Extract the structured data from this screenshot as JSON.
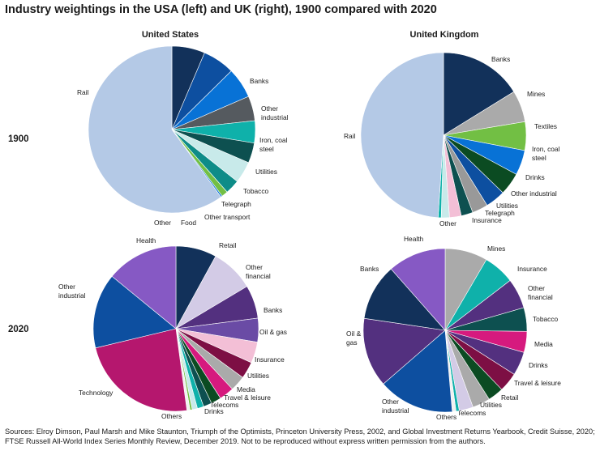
{
  "title": "Industry weightings in the USA (left) and UK (right), 1900 compared with 2020",
  "columns": [
    "United States",
    "United Kingdom"
  ],
  "rows": [
    "1900",
    "2020"
  ],
  "source": "Sources: Elroy Dimson, Paul Marsh and Mike Staunton, Triumph of the Optimists, Princeton University Press, 2002, and Global Investment Returns Yearbook, Credit Suisse, 2020; FTSE Russell All-World Index Series Monthly Review, December 2019. Not to be reproduced without express written permission from the authors.",
  "chart_data": [
    {
      "type": "pie",
      "title": "United States 1900",
      "start_angle_deg": 90,
      "direction": "clockwise",
      "slices": [
        {
          "label": "Banks",
          "value": 6.4,
          "color": "#12315a"
        },
        {
          "label": "Other industrial",
          "value": 6.2,
          "color": "#0d4fa0"
        },
        {
          "label": "Iron, coal steel",
          "value": 5.9,
          "color": "#0872d6"
        },
        {
          "label": "Utilities",
          "value": 4.8,
          "color": "#555a5f"
        },
        {
          "label": "Tobacco",
          "value": 4.3,
          "color": "#0fb1aa"
        },
        {
          "label": "Telegraph",
          "value": 3.9,
          "color": "#0d5050"
        },
        {
          "label": "Other transport",
          "value": 4.2,
          "color": "#c8eaea"
        },
        {
          "label": "Food",
          "value": 2.8,
          "color": "#0e8c88"
        },
        {
          "label": "Other",
          "value": 1.2,
          "color": "#72bf44"
        },
        {
          "label": "",
          "value": 0.3,
          "color": "#0872d6"
        },
        {
          "label": "Rail",
          "value": 60.0,
          "color": "#b4c9e6"
        }
      ]
    },
    {
      "type": "pie",
      "title": "United Kingdom 1900",
      "start_angle_deg": 90,
      "direction": "clockwise",
      "slices": [
        {
          "label": "Banks",
          "value": 16.2,
          "color": "#12315a"
        },
        {
          "label": "Mines",
          "value": 6.2,
          "color": "#aaaaaa"
        },
        {
          "label": "Textiles",
          "value": 5.6,
          "color": "#72bf44"
        },
        {
          "label": "Iron, coal steel",
          "value": 4.9,
          "color": "#0872d6"
        },
        {
          "label": "Drinks",
          "value": 4.4,
          "color": "#0b4b22"
        },
        {
          "label": "Other industrial",
          "value": 3.9,
          "color": "#0d4fa0"
        },
        {
          "label": "Utilities",
          "value": 3.1,
          "color": "#999999"
        },
        {
          "label": "Telegraph",
          "value": 2.3,
          "color": "#0d5050"
        },
        {
          "label": "Insurance",
          "value": 2.3,
          "color": "#f3bfd6"
        },
        {
          "label": "Other",
          "value": 1.6,
          "color": "#c8eaea"
        },
        {
          "label": "",
          "value": 0.6,
          "color": "#0fb1aa"
        },
        {
          "label": "Rail",
          "value": 49.0,
          "color": "#b4c9e6"
        }
      ]
    },
    {
      "type": "pie",
      "title": "United States 2020",
      "start_angle_deg": 90,
      "direction": "clockwise",
      "slices": [
        {
          "label": "Retail",
          "value": 7.7,
          "color": "#12315a"
        },
        {
          "label": "Other financial",
          "value": 8.2,
          "color": "#d3cbe6"
        },
        {
          "label": "Banks",
          "value": 6.3,
          "color": "#53307f"
        },
        {
          "label": "Oil & gas",
          "value": 4.5,
          "color": "#6a4ba5"
        },
        {
          "label": "Insurance",
          "value": 4.0,
          "color": "#f3bfd6"
        },
        {
          "label": "Utilities",
          "value": 3.2,
          "color": "#7d0f44"
        },
        {
          "label": "Media",
          "value": 2.9,
          "color": "#aaaaaa"
        },
        {
          "label": "Travel & leisure",
          "value": 2.8,
          "color": "#d61a7e"
        },
        {
          "label": "Telecoms",
          "value": 1.9,
          "color": "#0b4b22"
        },
        {
          "label": "Drinks",
          "value": 1.6,
          "color": "#0d5050"
        },
        {
          "label": "",
          "value": 1.2,
          "color": "#0fb1aa"
        },
        {
          "label": "",
          "value": 1.0,
          "color": "#c8eaea"
        },
        {
          "label": "",
          "value": 0.4,
          "color": "#72bf44"
        },
        {
          "label": "Others",
          "value": 0.6,
          "color": "#f1f1f1"
        },
        {
          "label": "Technology",
          "value": 22.6,
          "color": "#b5176e"
        },
        {
          "label": "Other industrial",
          "value": 14.2,
          "color": "#0d4fa0"
        },
        {
          "label": "Health",
          "value": 13.6,
          "color": "#8659c4"
        }
      ]
    },
    {
      "type": "pie",
      "title": "United Kingdom 2020",
      "start_angle_deg": 90,
      "direction": "clockwise",
      "slices": [
        {
          "label": "Mines",
          "value": 7.9,
          "color": "#aaaaaa"
        },
        {
          "label": "Insurance",
          "value": 5.8,
          "color": "#0fb1aa"
        },
        {
          "label": "Other financial",
          "value": 5.6,
          "color": "#53307f"
        },
        {
          "label": "Tobacco",
          "value": 4.4,
          "color": "#0d5050"
        },
        {
          "label": "Media",
          "value": 3.9,
          "color": "#d61a7e"
        },
        {
          "label": "Drinks",
          "value": 4.4,
          "color": "#53307f"
        },
        {
          "label": "Travel & leisure",
          "value": 3.6,
          "color": "#7d0f44"
        },
        {
          "label": "Retail",
          "value": 2.9,
          "color": "#0b4b22"
        },
        {
          "label": "Utilities",
          "value": 3.3,
          "color": "#aaaaaa"
        },
        {
          "label": "Telecoms",
          "value": 2.6,
          "color": "#d3cbe6"
        },
        {
          "label": "",
          "value": 0.6,
          "color": "#0fb1aa"
        },
        {
          "label": "Others",
          "value": 0.7,
          "color": "#f1f1f1"
        },
        {
          "label": "Other industrial",
          "value": 14.1,
          "color": "#0d4fa0"
        },
        {
          "label": "Oil & gas",
          "value": 12.9,
          "color": "#53307f"
        },
        {
          "label": "Banks",
          "value": 10.5,
          "color": "#12315a"
        },
        {
          "label": "Health",
          "value": 10.8,
          "color": "#8659c4"
        }
      ]
    }
  ]
}
